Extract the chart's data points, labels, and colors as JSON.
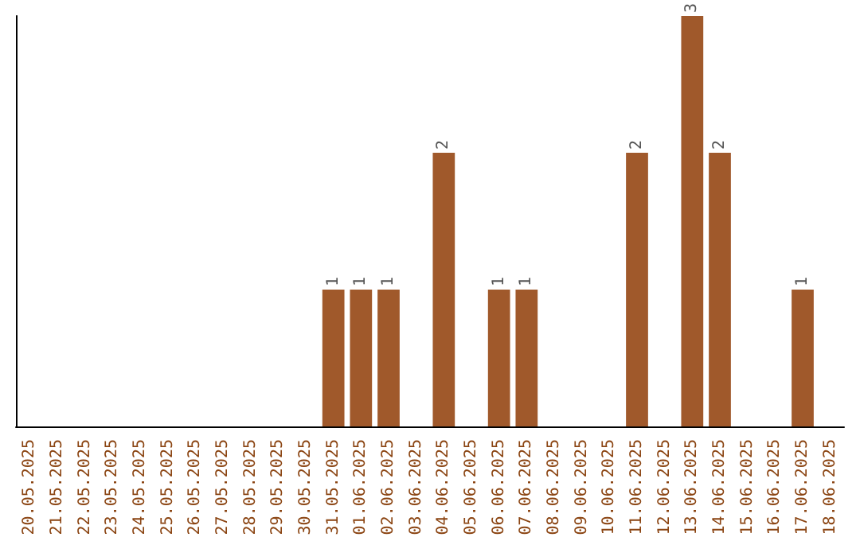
{
  "chart_data": {
    "type": "bar",
    "categories": [
      "20.05.2025",
      "21.05.2025",
      "22.05.2025",
      "23.05.2025",
      "24.05.2025",
      "25.05.2025",
      "26.05.2025",
      "27.05.2025",
      "28.05.2025",
      "29.05.2025",
      "30.05.2025",
      "31.05.2025",
      "01.06.2025",
      "02.06.2025",
      "03.06.2025",
      "04.06.2025",
      "05.06.2025",
      "06.06.2025",
      "07.06.2025",
      "08.06.2025",
      "09.06.2025",
      "10.06.2025",
      "11.06.2025",
      "12.06.2025",
      "13.06.2025",
      "14.06.2025",
      "15.06.2025",
      "16.06.2025",
      "17.06.2025",
      "18.06.2025"
    ],
    "values": [
      0,
      0,
      0,
      0,
      0,
      0,
      0,
      0,
      0,
      0,
      0,
      1,
      1,
      1,
      0,
      2,
      0,
      1,
      1,
      0,
      0,
      0,
      2,
      0,
      3,
      2,
      0,
      0,
      1,
      0
    ],
    "value_labels": [
      null,
      null,
      null,
      null,
      null,
      null,
      null,
      null,
      null,
      null,
      null,
      "1",
      "1",
      "1",
      null,
      "2",
      null,
      "1",
      "1",
      null,
      null,
      null,
      "2",
      null,
      "3",
      "2",
      null,
      null,
      "1",
      null
    ],
    "color": "#a0592b",
    "ylim": [
      0,
      3
    ],
    "tick_labels": "x"
  }
}
